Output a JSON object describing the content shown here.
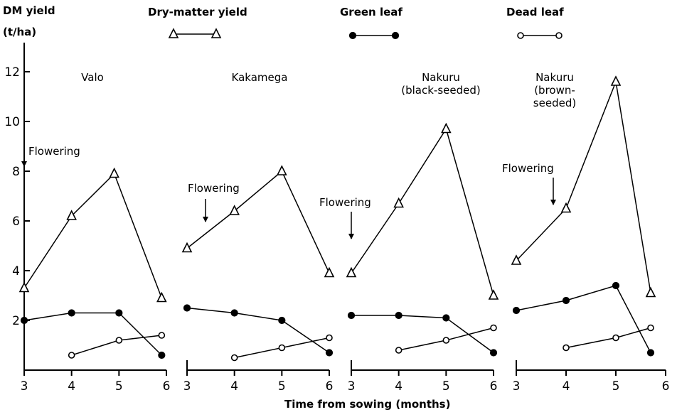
{
  "chart_data": {
    "type": "line",
    "ylabel_line1": "DM yield",
    "ylabel_line2": "(t/ha)",
    "xlabel": "Time from sowing  (months)",
    "ylim": [
      0,
      13
    ],
    "yticks": [
      2,
      4,
      6,
      8,
      10,
      12
    ],
    "xlim": [
      3,
      6
    ],
    "xticks": [
      3,
      4,
      5,
      6
    ],
    "legend": [
      {
        "name": "Dry-matter yield",
        "marker": "open-triangle"
      },
      {
        "name": "Green  leaf",
        "marker": "filled-circle"
      },
      {
        "name": "Dead  leaf",
        "marker": "open-circle"
      }
    ],
    "annotation_label": "Flowering",
    "panels": [
      {
        "title": "Valo",
        "flowering_month": 3.0,
        "series": [
          {
            "name": "Dry-matter yield",
            "x": [
              3,
              4,
              4.9,
              5.9
            ],
            "y": [
              3.3,
              6.2,
              7.9,
              2.9
            ]
          },
          {
            "name": "Green  leaf",
            "x": [
              3,
              4,
              5,
              5.9
            ],
            "y": [
              2.0,
              2.3,
              2.3,
              0.6
            ]
          },
          {
            "name": "Dead  leaf",
            "x": [
              4,
              5,
              5.9
            ],
            "y": [
              0.6,
              1.2,
              1.4
            ]
          }
        ]
      },
      {
        "title": "Kakamega",
        "flowering_month": 3.4,
        "series": [
          {
            "name": "Dry-matter yield",
            "x": [
              3,
              4,
              5,
              6
            ],
            "y": [
              4.9,
              6.4,
              8.0,
              3.9
            ]
          },
          {
            "name": "Green  leaf",
            "x": [
              3,
              4,
              5,
              6
            ],
            "y": [
              2.5,
              2.3,
              2.0,
              0.7
            ]
          },
          {
            "name": "Dead  leaf",
            "x": [
              4,
              5,
              6
            ],
            "y": [
              0.5,
              0.9,
              1.3
            ]
          }
        ]
      },
      {
        "title_lines": [
          "Nakuru",
          "(black-seeded)"
        ],
        "flowering_month": 3.0,
        "series": [
          {
            "name": "Dry-matter yield",
            "x": [
              3,
              4,
              5,
              6
            ],
            "y": [
              3.9,
              6.7,
              9.7,
              3.0
            ]
          },
          {
            "name": "Green  leaf",
            "x": [
              3,
              4,
              5,
              6
            ],
            "y": [
              2.2,
              2.2,
              2.1,
              0.7
            ]
          },
          {
            "name": "Dead  leaf",
            "x": [
              4,
              5,
              6
            ],
            "y": [
              0.8,
              1.2,
              1.7
            ]
          }
        ]
      },
      {
        "title_lines": [
          "Nakuru",
          "(brown-",
          "seeded)"
        ],
        "flowering_month": 3.8,
        "series": [
          {
            "name": "Dry-matter yield",
            "x": [
              3,
              4,
              5,
              5.7
            ],
            "y": [
              4.4,
              6.5,
              11.6,
              3.1
            ]
          },
          {
            "name": "Green  leaf",
            "x": [
              3,
              4,
              5,
              5.7
            ],
            "y": [
              2.4,
              2.8,
              3.4,
              0.7
            ]
          },
          {
            "name": "Dead  leaf",
            "x": [
              4,
              5,
              5.7
            ],
            "y": [
              0.9,
              1.3,
              1.7
            ]
          }
        ]
      }
    ]
  }
}
